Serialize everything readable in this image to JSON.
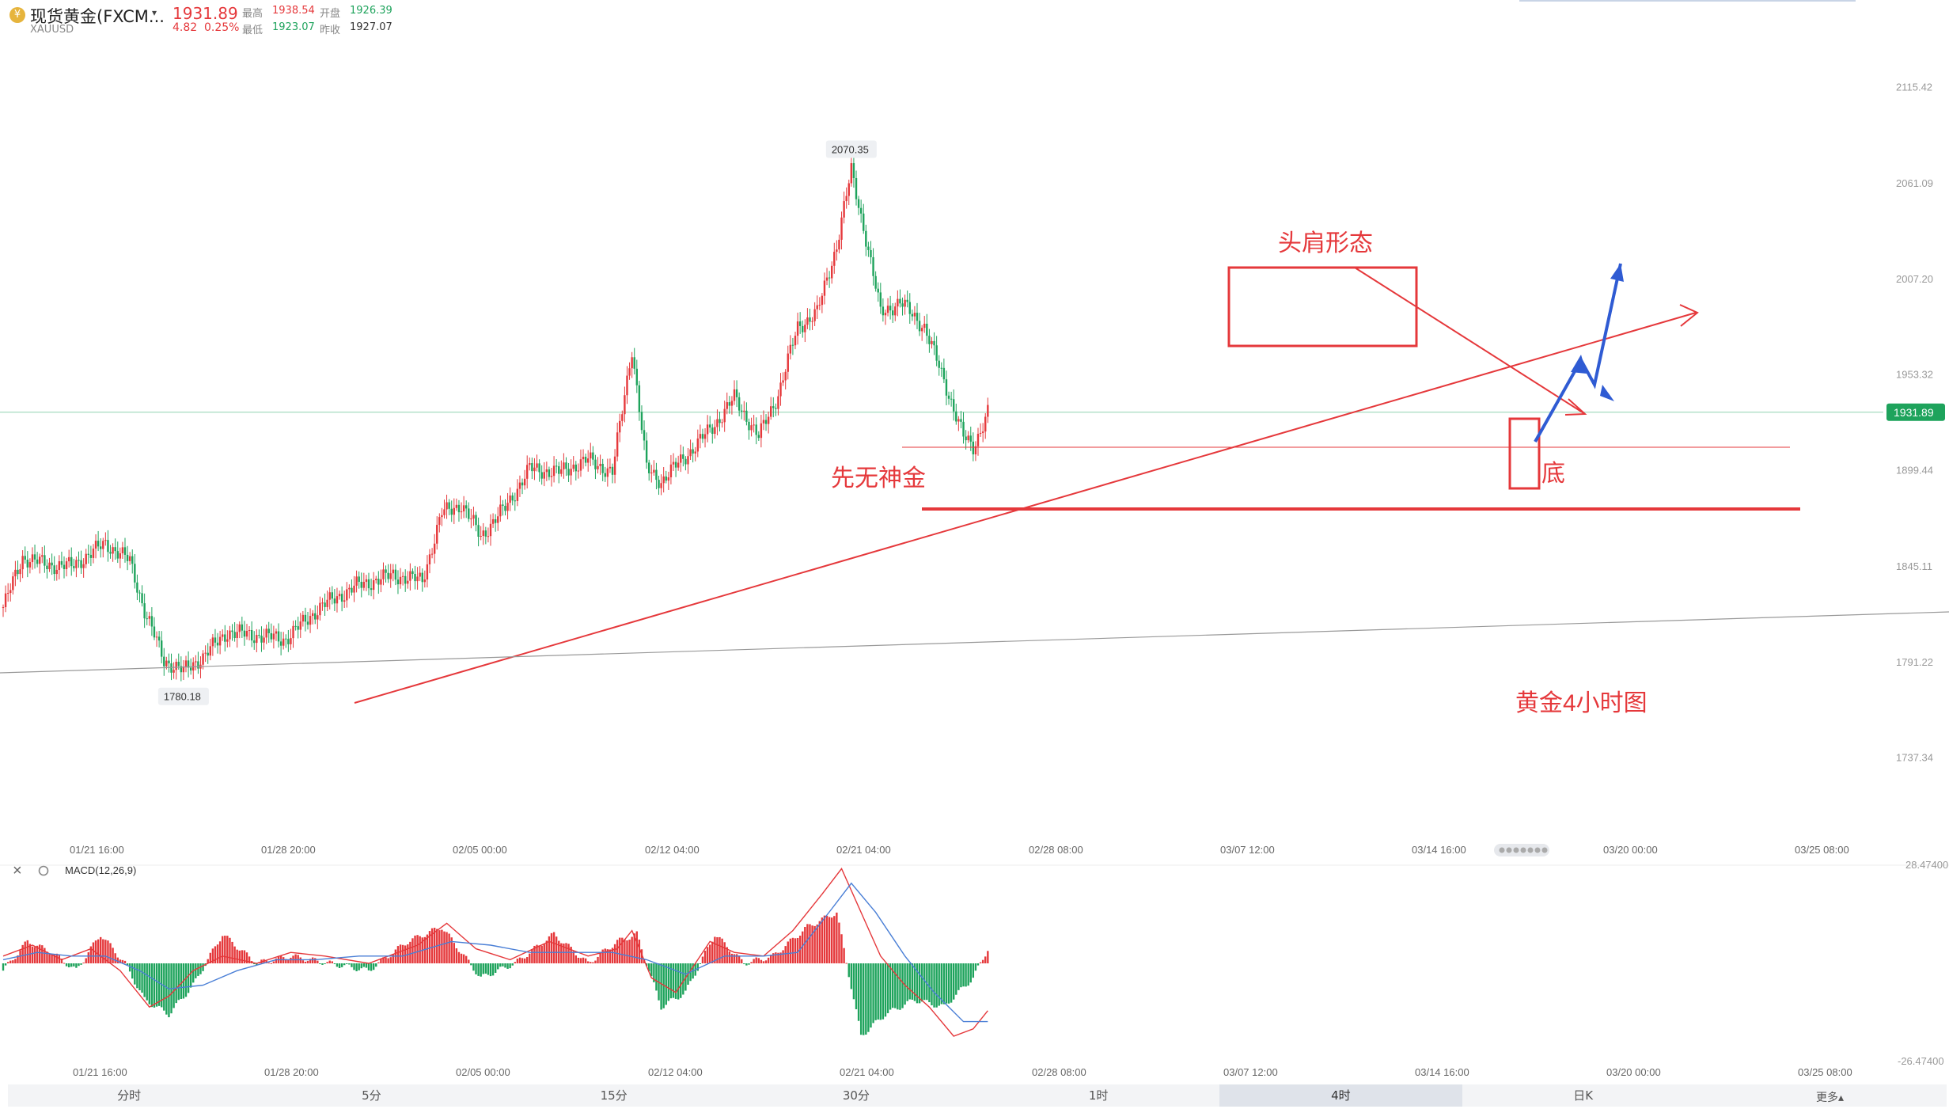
{
  "quote": {
    "name": "现货黄金(FXCM...",
    "symbol": "XAUUSD",
    "last": "1931.89",
    "change": "4.82",
    "change_pct": "0.25%",
    "high_label": "最高",
    "high": "1938.54",
    "open_label": "开盘",
    "open": "1926.39",
    "low_label": "最低",
    "low": "1923.07",
    "prev_label": "昨收",
    "prev": "1927.07",
    "up_color": "#e5383b",
    "down_color": "#1ea35c"
  },
  "chart_data": [
    {
      "type": "candlestick",
      "title": "黄金4小时图",
      "y_ticks": [
        2115.42,
        2061.09,
        2007.2,
        1953.32,
        1899.44,
        1845.11,
        1791.22,
        1737.34
      ],
      "y_tick_labels": [
        "2115.42",
        "2061.09",
        "2007.20",
        "1953.32",
        "1899.44",
        "1845.11",
        "1791.22",
        "1737.34"
      ],
      "ylim": [
        1700,
        2165
      ],
      "x_tick_labels": [
        "01/21 16:00",
        "01/28 20:00",
        "02/05 00:00",
        "02/12 04:00",
        "02/21 04:00",
        "02/28 08:00",
        "03/07 12:00",
        "03/14 16:00",
        "03/20 00:00",
        "03/25 08:00"
      ],
      "last_price": 1931.89,
      "last_price_label": "1931.89",
      "max_marker": {
        "value": 2070.35,
        "label": "2070.35"
      },
      "min_marker": {
        "value": 1780.18,
        "label": "1780.18"
      },
      "close_path": [
        {
          "i": 0,
          "c": 1822
        },
        {
          "i": 8,
          "c": 1850
        },
        {
          "i": 18,
          "c": 1846
        },
        {
          "i": 28,
          "c": 1845
        },
        {
          "i": 42,
          "c": 1858
        },
        {
          "i": 52,
          "c": 1848
        },
        {
          "i": 58,
          "c": 1820
        },
        {
          "i": 66,
          "c": 1792
        },
        {
          "i": 74,
          "c": 1786
        },
        {
          "i": 82,
          "c": 1794
        },
        {
          "i": 92,
          "c": 1808
        },
        {
          "i": 104,
          "c": 1806
        },
        {
          "i": 116,
          "c": 1804
        },
        {
          "i": 130,
          "c": 1822
        },
        {
          "i": 145,
          "c": 1834
        },
        {
          "i": 160,
          "c": 1840
        },
        {
          "i": 172,
          "c": 1837
        },
        {
          "i": 180,
          "c": 1875
        },
        {
          "i": 188,
          "c": 1880
        },
        {
          "i": 196,
          "c": 1862
        },
        {
          "i": 206,
          "c": 1878
        },
        {
          "i": 216,
          "c": 1900
        },
        {
          "i": 228,
          "c": 1898
        },
        {
          "i": 240,
          "c": 1905
        },
        {
          "i": 250,
          "c": 1898
        },
        {
          "i": 258,
          "c": 1968
        },
        {
          "i": 264,
          "c": 1900
        },
        {
          "i": 270,
          "c": 1893
        },
        {
          "i": 282,
          "c": 1910
        },
        {
          "i": 292,
          "c": 1925
        },
        {
          "i": 300,
          "c": 1940
        },
        {
          "i": 310,
          "c": 1918
        },
        {
          "i": 318,
          "c": 1942
        },
        {
          "i": 326,
          "c": 1980
        },
        {
          "i": 334,
          "c": 1988
        },
        {
          "i": 342,
          "c": 2026
        },
        {
          "i": 348,
          "c": 2068
        },
        {
          "i": 354,
          "c": 2030
        },
        {
          "i": 360,
          "c": 1988
        },
        {
          "i": 368,
          "c": 1994
        },
        {
          "i": 378,
          "c": 1980
        },
        {
          "i": 386,
          "c": 1950
        },
        {
          "i": 394,
          "c": 1918
        },
        {
          "i": 398,
          "c": 1912
        },
        {
          "i": 404,
          "c": 1932
        }
      ]
    },
    {
      "type": "line",
      "title": "MACD(12,26,9)",
      "y_tick_labels": [
        "28.47400",
        "-26.47400"
      ],
      "ylim": [
        -26.474,
        28.474
      ],
      "series": [
        {
          "name": "DIF",
          "color": "#e5383b",
          "x": [
            0,
            12,
            24,
            36,
            48,
            60,
            68,
            78,
            90,
            104,
            118,
            132,
            150,
            170,
            182,
            194,
            208,
            224,
            240,
            252,
            258,
            266,
            276,
            290,
            300,
            312,
            324,
            336,
            344,
            352,
            360,
            370,
            380,
            390,
            398,
            404
          ],
          "y": [
            2,
            5,
            1,
            4,
            -2,
            -12,
            -9,
            -2,
            2,
            0,
            3,
            2,
            0,
            5,
            11,
            4,
            1,
            6,
            2,
            4,
            9,
            -4,
            -8,
            6,
            3,
            2,
            9,
            19,
            26,
            14,
            2,
            -6,
            -12,
            -20,
            -18,
            -13
          ]
        },
        {
          "name": "DEA",
          "color": "#4a7fd6",
          "x": [
            0,
            14,
            28,
            42,
            56,
            68,
            82,
            96,
            112,
            128,
            146,
            164,
            184,
            200,
            216,
            232,
            250,
            264,
            280,
            296,
            312,
            326,
            340,
            348,
            358,
            370,
            382,
            394,
            404
          ],
          "y": [
            1,
            3,
            2,
            2,
            -2,
            -7,
            -6,
            -2,
            1,
            1,
            2,
            2,
            6,
            5,
            3,
            3,
            3,
            1,
            -3,
            2,
            2,
            3,
            15,
            22,
            14,
            2,
            -8,
            -16,
            -16
          ]
        }
      ],
      "histogram": {
        "x": [
          0,
          10,
          20,
          30,
          40,
          50,
          58,
          68,
          78,
          90,
          104,
          118,
          134,
          150,
          166,
          180,
          196,
          210,
          226,
          240,
          252,
          260,
          270,
          280,
          292,
          304,
          316,
          330,
          342,
          352,
          362,
          374,
          386,
          398,
          404
        ],
        "y": [
          -2,
          6,
          3,
          -2,
          8,
          0,
          -10,
          -14,
          -6,
          8,
          0,
          2,
          0,
          -2,
          6,
          10,
          -4,
          0,
          8,
          0,
          6,
          8,
          -12,
          -8,
          8,
          0,
          2,
          10,
          14,
          -20,
          -14,
          -10,
          -12,
          -4,
          4
        ]
      },
      "x_tick_labels": [
        "01/21 16:00",
        "01/28 20:00",
        "02/05 00:00",
        "02/12 04:00",
        "02/21 04:00",
        "02/28 08:00",
        "03/07 12:00",
        "03/14 16:00",
        "03/20 00:00",
        "03/25 08:00"
      ]
    }
  ],
  "annotations": {
    "head_shoulders": "头肩形态",
    "support_label": "先无神金",
    "bottom": "底",
    "chart_title": "黄金4小时图",
    "color": "#e5383b",
    "arrow_color": "#2f5bd3"
  },
  "tabs": [
    "分时",
    "5分",
    "15分",
    "30分",
    "1时",
    "4时",
    "日K"
  ],
  "active_tab": "4时",
  "more_label": "更多▴"
}
